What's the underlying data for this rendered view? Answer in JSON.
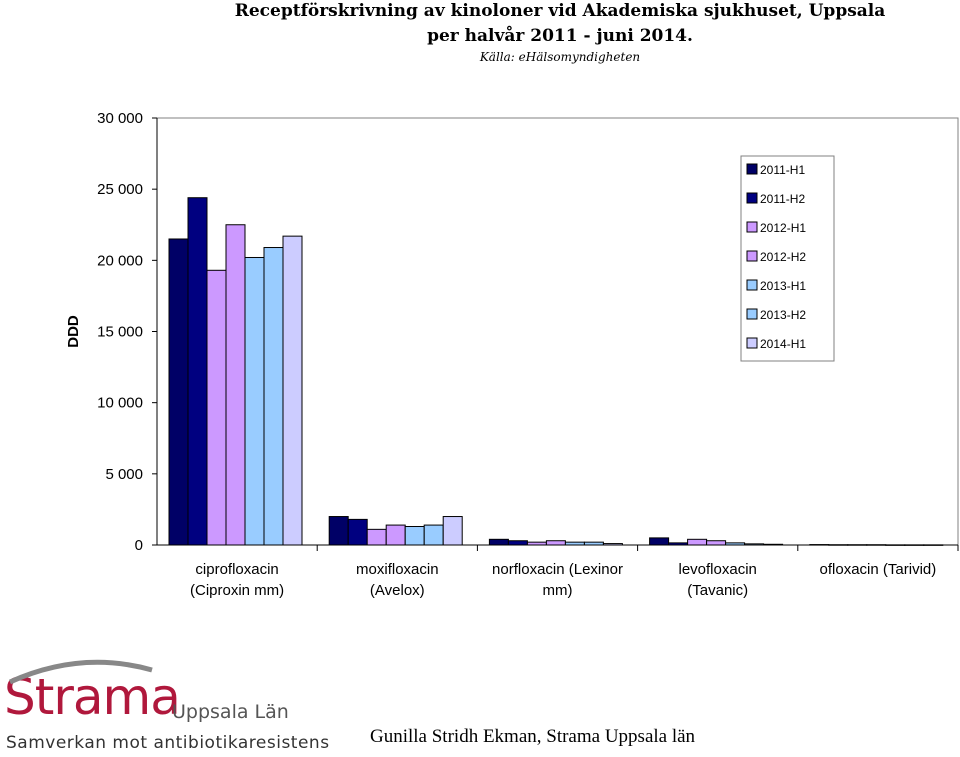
{
  "title_line1": "Receptförskrivning av kinoloner vid Akademiska sjukhuset, Uppsala",
  "title_line2": "per halvår 2011 - juni 2014.",
  "source": "Källa: eHälsomyndigheten",
  "logo": {
    "name": "Strama",
    "sub": "Uppsala Län",
    "tagline": "Samverkan mot antibiotikaresistens",
    "color": "#b0183c"
  },
  "author": "Gunilla Stridh Ekman, Strama Uppsala län",
  "chart_data": {
    "type": "bar",
    "ylabel": "DDD",
    "ylim": [
      0,
      30000
    ],
    "yticks": [
      0,
      5000,
      10000,
      15000,
      20000,
      25000,
      30000
    ],
    "ytick_labels": [
      "0",
      "5 000",
      "10 000",
      "15 000",
      "20 000",
      "25 000",
      "30 000"
    ],
    "grid": false,
    "legend_position": "top-right",
    "categories": [
      [
        "ciprofloxacin",
        "(Ciproxin mm)"
      ],
      [
        "moxifloxacin",
        "(Avelox)"
      ],
      [
        "norfloxacin (Lexinor",
        "mm)"
      ],
      [
        "levofloxacin",
        "(Tavanic)"
      ],
      [
        "ofloxacin (Tarivid)"
      ]
    ],
    "series": [
      {
        "name": "2011-H1",
        "color": "#000066",
        "values": [
          21500,
          2000,
          400,
          500,
          30
        ]
      },
      {
        "name": "2011-H2",
        "color": "#000080",
        "values": [
          24400,
          1800,
          300,
          150,
          20
        ]
      },
      {
        "name": "2012-H1",
        "color": "#cc99ff",
        "values": [
          19300,
          1100,
          200,
          400,
          20
        ]
      },
      {
        "name": "2012-H2",
        "color": "#cc99ff",
        "values": [
          22500,
          1400,
          300,
          300,
          20
        ]
      },
      {
        "name": "2013-H1",
        "color": "#99ccff",
        "values": [
          20200,
          1300,
          200,
          150,
          10
        ]
      },
      {
        "name": "2013-H2",
        "color": "#99ccff",
        "values": [
          20900,
          1400,
          200,
          80,
          10
        ]
      },
      {
        "name": "2014-H1",
        "color": "#ccccff",
        "values": [
          21700,
          2000,
          100,
          50,
          10
        ]
      }
    ]
  }
}
